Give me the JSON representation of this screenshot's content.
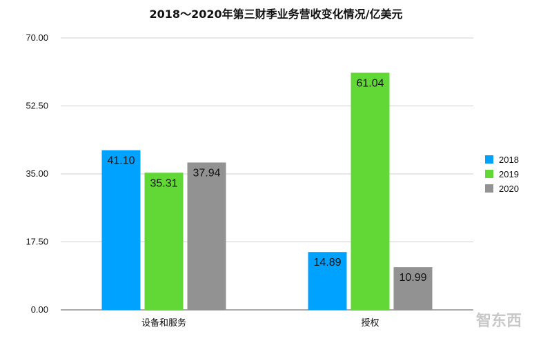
{
  "chart_data": {
    "type": "bar",
    "title": "2018～2020年第三财季业务营收变化情况/亿美元",
    "categories": [
      "设备和服务",
      "授权"
    ],
    "series": [
      {
        "name": "2018",
        "values": [
          41.1,
          14.89
        ],
        "labels": [
          "41.10",
          "14.89"
        ],
        "color": "#00a2ff"
      },
      {
        "name": "2019",
        "values": [
          35.31,
          61.04
        ],
        "labels": [
          "35.31",
          "61.04"
        ],
        "color": "#61d836"
      },
      {
        "name": "2020",
        "values": [
          37.94,
          10.99
        ],
        "labels": [
          "37.94",
          "10.99"
        ],
        "color": "#929292"
      }
    ],
    "ylim": [
      0,
      70
    ],
    "yticks": [
      0,
      17.5,
      35,
      52.5,
      70
    ],
    "ytick_labels": [
      "0.00",
      "17.50",
      "35.00",
      "52.50",
      "70.00"
    ],
    "xlabel": "",
    "ylabel": "",
    "grid": true,
    "legend_position": "right"
  },
  "watermark": "智东西"
}
